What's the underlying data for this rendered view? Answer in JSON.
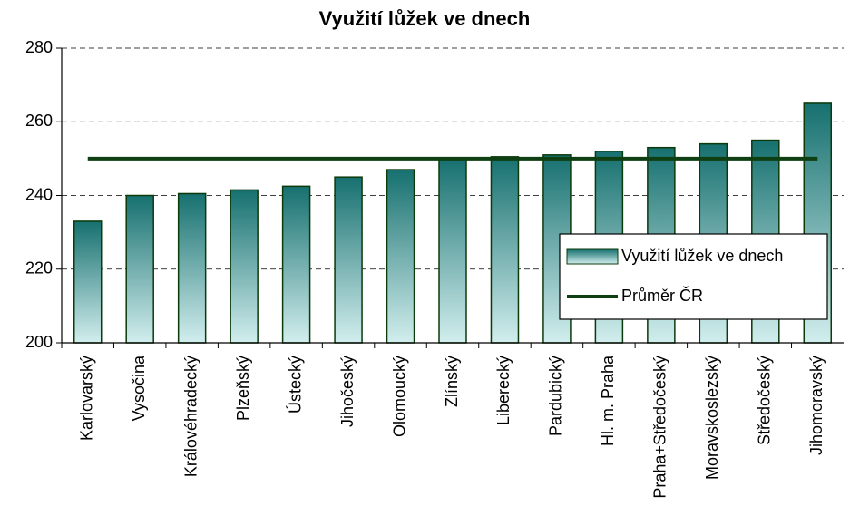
{
  "chart_data": {
    "type": "bar",
    "title": "Využití lůžek ve dnech",
    "categories": [
      "Karlovarský",
      "Vysočina",
      "Královéhradecký",
      "Plzeňský",
      "Ústecký",
      "Jihočeský",
      "Olomoucký",
      "Zlínský",
      "Liberecký",
      "Pardubický",
      "Hl. m. Praha",
      "Praha+Středočeský",
      "Moravskoslezský",
      "Středočeský",
      "Jihomoravský"
    ],
    "series": [
      {
        "name": "Využití lůžek ve dnech",
        "type": "bar",
        "color": "#1f7f7f",
        "values": [
          233,
          240,
          240.5,
          241.5,
          242.5,
          245,
          247,
          250,
          250.5,
          251,
          252,
          253,
          254,
          255,
          265
        ]
      },
      {
        "name": "Průměr ČR",
        "type": "line",
        "color": "#0e3f12",
        "values": [
          250,
          250,
          250,
          250,
          250,
          250,
          250,
          250,
          250,
          250,
          250,
          250,
          250,
          250,
          250
        ]
      }
    ],
    "ylim": [
      200,
      280
    ],
    "yticks": [
      200,
      220,
      240,
      260,
      280
    ],
    "grid": true,
    "legend": "right"
  }
}
